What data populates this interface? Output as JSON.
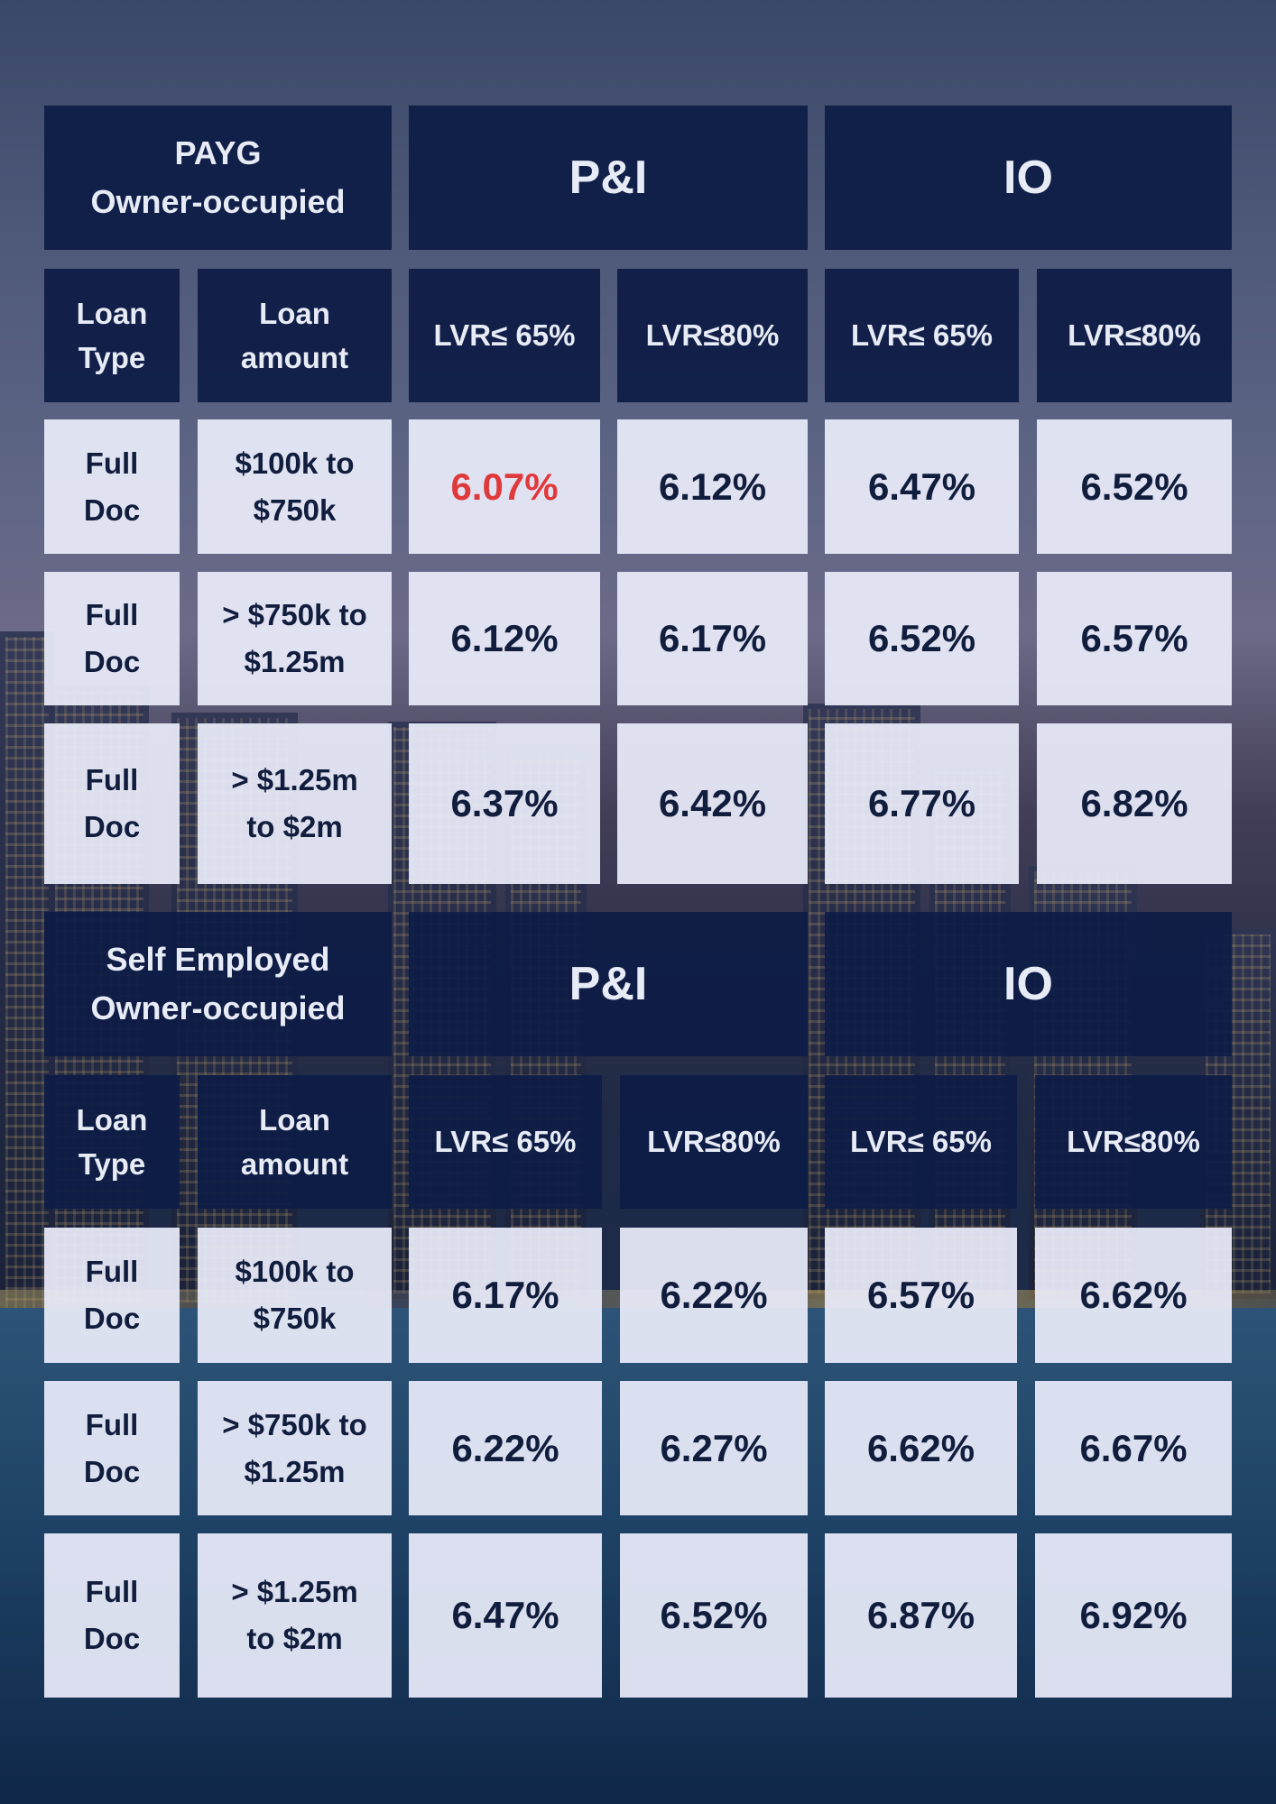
{
  "accent_color": "#e0393b",
  "sections": [
    {
      "title_line1": "PAYG",
      "title_line2": "Owner-occupied",
      "pi_label": "P&I",
      "io_label": "IO",
      "col_loan_type_1": "Loan",
      "col_loan_type_2": "Type",
      "col_loan_amount_1": "Loan",
      "col_loan_amount_2": "amount",
      "lvr_headers": [
        "LVR≤ 65%",
        "LVR≤80%",
        "LVR≤ 65%",
        "LVR≤80%"
      ],
      "rows": [
        {
          "type1": "Full",
          "type2": "Doc",
          "amount1": "$100k to",
          "amount2": "$750k",
          "rates": [
            "6.07%",
            "6.12%",
            "6.47%",
            "6.52%"
          ]
        },
        {
          "type1": "Full",
          "type2": "Doc",
          "amount1": "> $750k to",
          "amount2": "$1.25m",
          "rates": [
            "6.12%",
            "6.17%",
            "6.52%",
            "6.57%"
          ]
        },
        {
          "type1": "Full",
          "type2": "Doc",
          "amount1": "> $1.25m",
          "amount2": "to $2m",
          "rates": [
            "6.37%",
            "6.42%",
            "6.77%",
            "6.82%"
          ]
        }
      ]
    },
    {
      "title_line1": "Self Employed",
      "title_line2": "Owner-occupied",
      "pi_label": "P&I",
      "io_label": "IO",
      "col_loan_type_1": "Loan",
      "col_loan_type_2": "Type",
      "col_loan_amount_1": "Loan",
      "col_loan_amount_2": "amount",
      "lvr_headers": [
        "LVR≤ 65%",
        "LVR≤80%",
        "LVR≤ 65%",
        "LVR≤80%"
      ],
      "rows": [
        {
          "type1": "Full",
          "type2": "Doc",
          "amount1": "$100k to",
          "amount2": "$750k",
          "rates": [
            "6.17%",
            "6.22%",
            "6.57%",
            "6.62%"
          ]
        },
        {
          "type1": "Full",
          "type2": "Doc",
          "amount1": "> $750k to",
          "amount2": "$1.25m",
          "rates": [
            "6.22%",
            "6.27%",
            "6.62%",
            "6.67%"
          ]
        },
        {
          "type1": "Full",
          "type2": "Doc",
          "amount1": "> $1.25m",
          "amount2": "to $2m",
          "rates": [
            "6.47%",
            "6.52%",
            "6.87%",
            "6.92%"
          ]
        }
      ]
    }
  ]
}
